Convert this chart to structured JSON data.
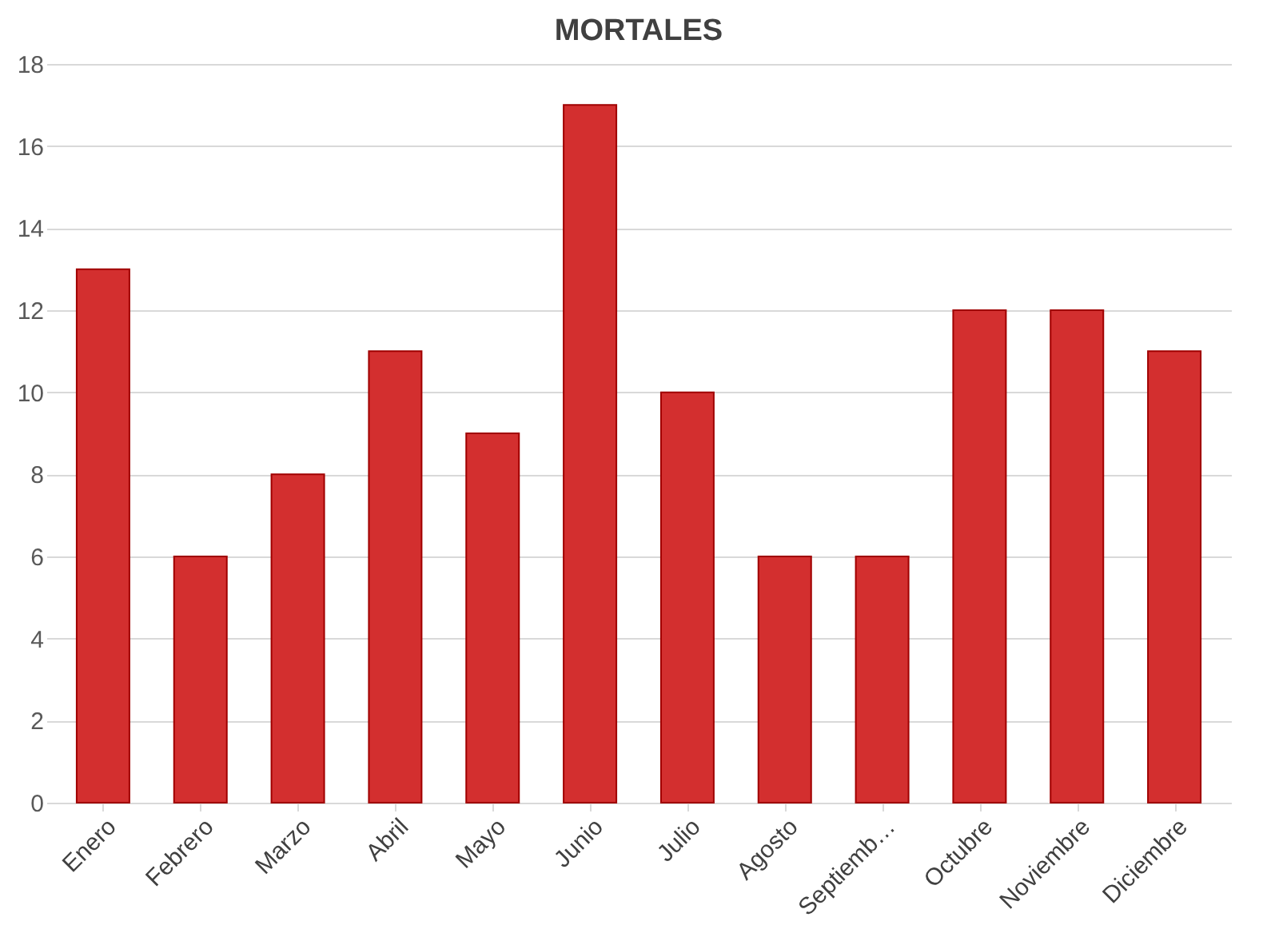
{
  "chart_data": {
    "type": "bar",
    "title": "MORTALES",
    "categories": [
      "Enero",
      "Febrero",
      "Marzo",
      "Abril",
      "Mayo",
      "Junio",
      "Julio",
      "Agosto",
      "Septiemb…",
      "Octubre",
      "Noviembre",
      "Diciembre"
    ],
    "values": [
      13,
      6,
      8,
      11,
      9,
      17,
      10,
      6,
      6,
      12,
      12,
      11
    ],
    "color": "#d32f2f",
    "ylim": [
      0,
      18
    ],
    "yticks": [
      0,
      2,
      4,
      6,
      8,
      10,
      12,
      14,
      16,
      18
    ],
    "grid": "y"
  }
}
